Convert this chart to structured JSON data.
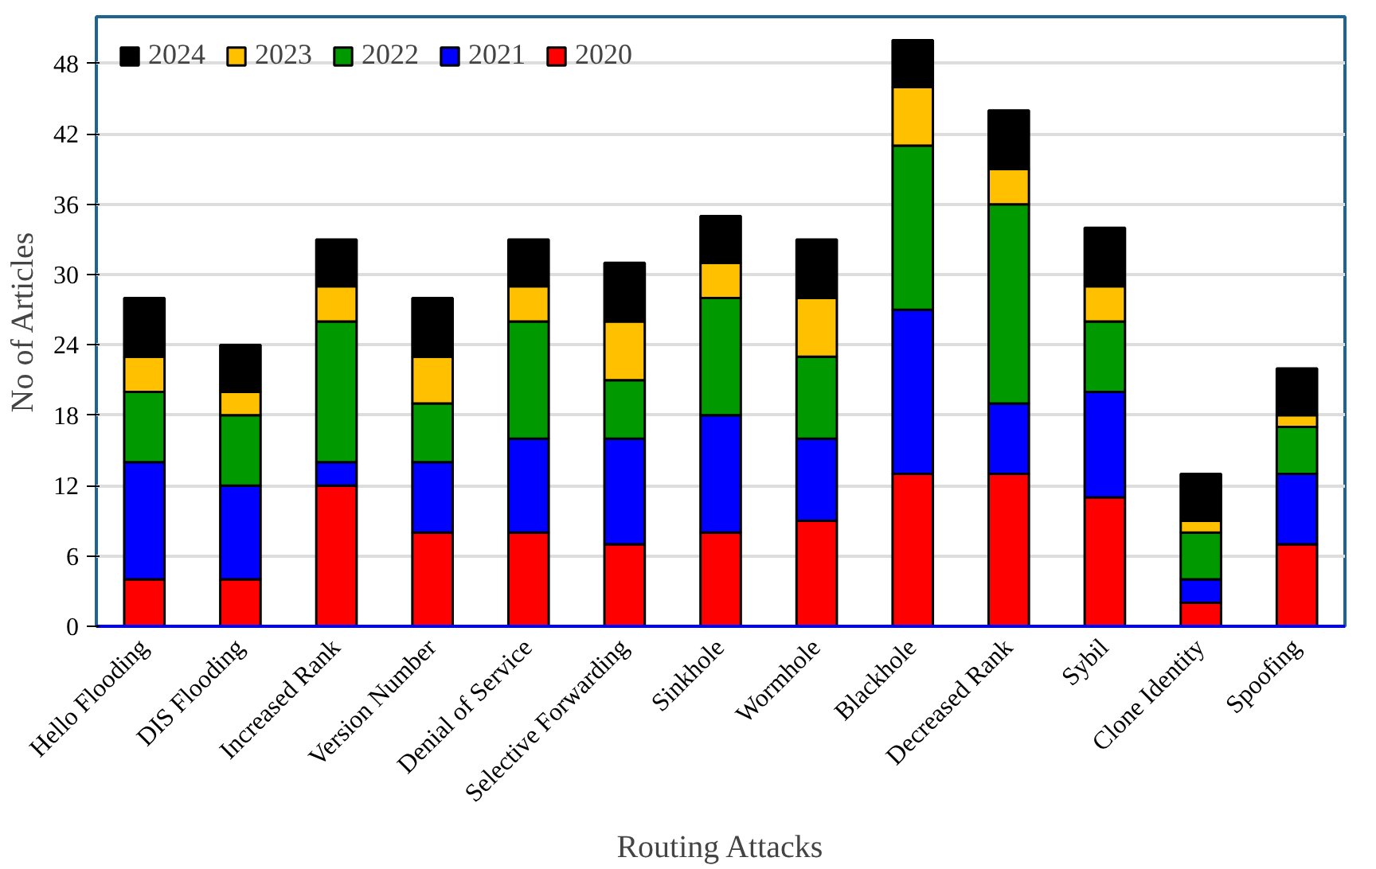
{
  "chart_data": {
    "type": "bar",
    "stacked": true,
    "xlabel": "Routing Attacks",
    "ylabel": "No of Articles",
    "categories": [
      "Hello Flooding",
      "DIS Flooding",
      "Increased Rank",
      "Version Number",
      "Denial of Service",
      "Selective Forwarding",
      "Sinkhole",
      "Wormhole",
      "Blackhole",
      "Decreased Rank",
      "Sybil",
      "Clone Identity",
      "Spoofing"
    ],
    "series": [
      {
        "name": "2020",
        "color": "#ff0000",
        "values": [
          4,
          4,
          12,
          8,
          8,
          7,
          8,
          9,
          13,
          13,
          11,
          2,
          7
        ]
      },
      {
        "name": "2021",
        "color": "#0000ff",
        "values": [
          10,
          8,
          2,
          6,
          8,
          9,
          10,
          7,
          14,
          6,
          9,
          2,
          6
        ]
      },
      {
        "name": "2022",
        "color": "#009900",
        "values": [
          6,
          6,
          12,
          5,
          10,
          5,
          10,
          7,
          14,
          17,
          6,
          4,
          4
        ]
      },
      {
        "name": "2023",
        "color": "#ffc000",
        "values": [
          3,
          2,
          3,
          4,
          3,
          5,
          3,
          5,
          5,
          3,
          3,
          1,
          1
        ]
      },
      {
        "name": "2024",
        "color": "#000000",
        "values": [
          5,
          4,
          4,
          5,
          4,
          5,
          4,
          5,
          4,
          5,
          5,
          4,
          4
        ]
      }
    ],
    "ylim": [
      0,
      52
    ],
    "yticks": [
      0,
      6,
      12,
      18,
      24,
      30,
      36,
      42,
      48
    ],
    "grid": "y",
    "legend": "top left"
  }
}
